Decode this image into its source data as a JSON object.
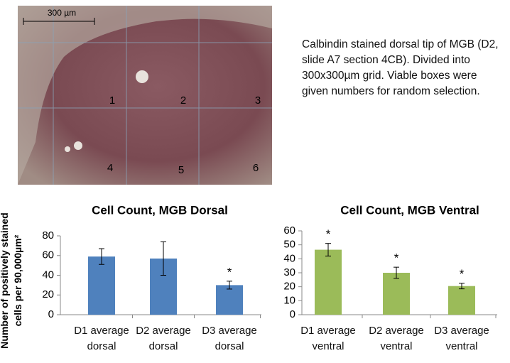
{
  "micrograph": {
    "scale_bar": "300 µm",
    "grid_numbers": [
      "1",
      "2",
      "3",
      "4",
      "5",
      "6"
    ]
  },
  "caption": "Calbindin stained dorsal tip of MGB (D2, slide A7 section 4CB). Divided into 300x300µm grid. Viable boxes were given numbers for random selection.",
  "chart_data": [
    {
      "type": "bar",
      "title": "Cell Count, MGB Dorsal",
      "ylabel": [
        "Number of positively stained",
        "cells per 90,000µm²"
      ],
      "categories": [
        "D1 average dorsal",
        "D2 average dorsal",
        "D3 average dorsal"
      ],
      "values": [
        59,
        57,
        30
      ],
      "errors": [
        8,
        17,
        4
      ],
      "color": "#4f81bd",
      "asterisks": [
        {
          "index": 2,
          "text": "*"
        }
      ],
      "ylim": [
        0,
        80
      ],
      "yticks": [
        0,
        20,
        40,
        60,
        80
      ]
    },
    {
      "type": "bar",
      "title": "Cell Count, MGB Ventral",
      "categories": [
        "D1 average ventral",
        "D2 average ventral",
        "D3 average ventral"
      ],
      "values": [
        46.5,
        30,
        20.5
      ],
      "errors": [
        4.5,
        4,
        2
      ],
      "color": "#9bbb59",
      "asterisks": [
        {
          "index": 0,
          "text": "*"
        },
        {
          "index": 1,
          "text": "*"
        },
        {
          "index": 2,
          "text": "*"
        }
      ],
      "ylim": [
        0,
        60
      ],
      "yticks": [
        0,
        10,
        20,
        30,
        40,
        50,
        60
      ]
    }
  ]
}
